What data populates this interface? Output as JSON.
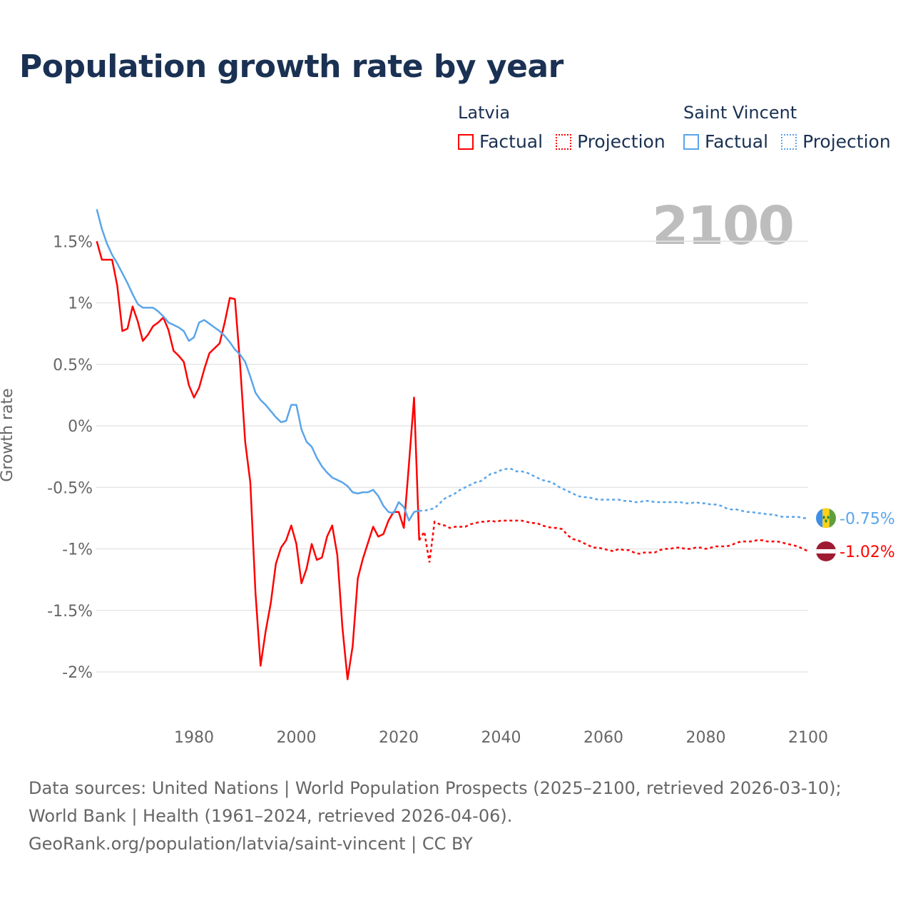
{
  "title": "Population growth rate by year",
  "current_year": "2100",
  "legend": [
    {
      "name": "Latvia",
      "color": "#ff0000",
      "factual": "Factual",
      "projection": "Projection"
    },
    {
      "name": "Saint Vincent",
      "color": "#5aa5ea",
      "factual": "Factual",
      "projection": "Projection"
    }
  ],
  "footer": {
    "sources": "Data sources: United Nations | World Population Prospects (2025–2100, retrieved 2026-03-10); World Bank | Health (1961–2024, retrieved 2026-04-06).",
    "attribution": "GeoRank.org/population/latvia/saint-vincent | CC BY"
  },
  "chart_data": {
    "type": "line",
    "title": "Population growth rate by year",
    "xlabel": "",
    "ylabel": "Growth rate",
    "xlim": [
      1961,
      2100
    ],
    "ylim": [
      -2.2,
      1.8
    ],
    "x_ticks": [
      1980,
      2000,
      2020,
      2040,
      2060,
      2080,
      2100
    ],
    "y_ticks": [
      {
        "v": 1.5,
        "label": "1.5%"
      },
      {
        "v": 1,
        "label": "1%"
      },
      {
        "v": 0.5,
        "label": "0.5%"
      },
      {
        "v": 0,
        "label": "0%"
      },
      {
        "v": -0.5,
        "label": "-0.5%"
      },
      {
        "v": -1,
        "label": "-1%"
      },
      {
        "v": -1.5,
        "label": "-1.5%"
      },
      {
        "v": -2,
        "label": "-2%"
      }
    ],
    "grid": true,
    "legend_position": "top-right",
    "series": [
      {
        "name": "Latvia",
        "color": "#ff0000",
        "end_label": "-1.02%",
        "flag": "latvia-flag",
        "factual_start": 1961,
        "factual": [
          1.5,
          1.35,
          1.35,
          1.35,
          1.14,
          0.77,
          0.79,
          0.97,
          0.85,
          0.69,
          0.74,
          0.81,
          0.84,
          0.88,
          0.78,
          0.61,
          0.57,
          0.52,
          0.33,
          0.23,
          0.31,
          0.46,
          0.59,
          0.63,
          0.67,
          0.84,
          1.04,
          1.03,
          0.5,
          -0.13,
          -0.46,
          -1.35,
          -1.95,
          -1.67,
          -1.44,
          -1.12,
          -0.99,
          -0.93,
          -0.81,
          -0.96,
          -1.28,
          -1.16,
          -0.96,
          -1.09,
          -1.07,
          -0.9,
          -0.81,
          -1.05,
          -1.64,
          -2.06,
          -1.79,
          -1.24,
          -1.08,
          -0.95,
          -0.82,
          -0.9,
          -0.88,
          -0.77,
          -0.7,
          -0.7,
          -0.83,
          -0.31,
          0.23,
          -0.93
        ],
        "projection_start": 2025,
        "projection": [
          -0.86,
          -1.11,
          -0.78,
          -0.8,
          -0.81,
          -0.83,
          -0.82,
          -0.82,
          -0.82,
          -0.8,
          -0.79,
          -0.78,
          -0.78,
          -0.77,
          -0.78,
          -0.77,
          -0.77,
          -0.77,
          -0.77,
          -0.77,
          -0.78,
          -0.79,
          -0.79,
          -0.81,
          -0.82,
          -0.83,
          -0.83,
          -0.84,
          -0.89,
          -0.92,
          -0.93,
          -0.95,
          -0.97,
          -0.99,
          -0.99,
          -1.0,
          -1.01,
          -1.02,
          -1.0,
          -1.01,
          -1.01,
          -1.03,
          -1.04,
          -1.03,
          -1.03,
          -1.03,
          -1.01,
          -1.0,
          -1.0,
          -0.99,
          -0.99,
          -1.0,
          -1.0,
          -0.99,
          -0.99,
          -1.0,
          -0.99,
          -0.98,
          -0.98,
          -0.98,
          -0.97,
          -0.95,
          -0.94,
          -0.94,
          -0.94,
          -0.93,
          -0.93,
          -0.94,
          -0.94,
          -0.94,
          -0.95,
          -0.96,
          -0.97,
          -0.98,
          -1.0,
          -1.02
        ]
      },
      {
        "name": "Saint Vincent",
        "color": "#5aa5ea",
        "end_label": "-0.75%",
        "flag": "saint-vincent-flag",
        "factual_start": 1961,
        "factual": [
          1.76,
          1.6,
          1.48,
          1.39,
          1.32,
          1.24,
          1.16,
          1.07,
          0.99,
          0.96,
          0.96,
          0.96,
          0.93,
          0.89,
          0.84,
          0.82,
          0.8,
          0.77,
          0.69,
          0.72,
          0.84,
          0.86,
          0.83,
          0.8,
          0.77,
          0.73,
          0.68,
          0.62,
          0.58,
          0.52,
          0.4,
          0.27,
          0.21,
          0.17,
          0.12,
          0.07,
          0.03,
          0.04,
          0.17,
          0.17,
          -0.03,
          -0.13,
          -0.17,
          -0.26,
          -0.33,
          -0.38,
          -0.42,
          -0.44,
          -0.46,
          -0.49,
          -0.54,
          -0.55,
          -0.54,
          -0.54,
          -0.52,
          -0.57,
          -0.65,
          -0.7,
          -0.71,
          -0.62,
          -0.66,
          -0.77,
          -0.7,
          -0.69
        ],
        "projection_start": 2025,
        "projection": [
          -0.69,
          -0.68,
          -0.67,
          -0.63,
          -0.59,
          -0.57,
          -0.55,
          -0.52,
          -0.5,
          -0.48,
          -0.46,
          -0.45,
          -0.42,
          -0.39,
          -0.38,
          -0.36,
          -0.35,
          -0.35,
          -0.37,
          -0.37,
          -0.38,
          -0.4,
          -0.42,
          -0.44,
          -0.45,
          -0.46,
          -0.49,
          -0.51,
          -0.53,
          -0.55,
          -0.57,
          -0.58,
          -0.58,
          -0.59,
          -0.6,
          -0.6,
          -0.6,
          -0.6,
          -0.6,
          -0.61,
          -0.61,
          -0.62,
          -0.62,
          -0.61,
          -0.61,
          -0.62,
          -0.62,
          -0.62,
          -0.62,
          -0.62,
          -0.62,
          -0.63,
          -0.63,
          -0.62,
          -0.63,
          -0.63,
          -0.64,
          -0.64,
          -0.65,
          -0.67,
          -0.68,
          -0.68,
          -0.69,
          -0.7,
          -0.7,
          -0.71,
          -0.71,
          -0.72,
          -0.72,
          -0.73,
          -0.74,
          -0.74,
          -0.74,
          -0.74,
          -0.75,
          -0.75
        ]
      }
    ]
  }
}
